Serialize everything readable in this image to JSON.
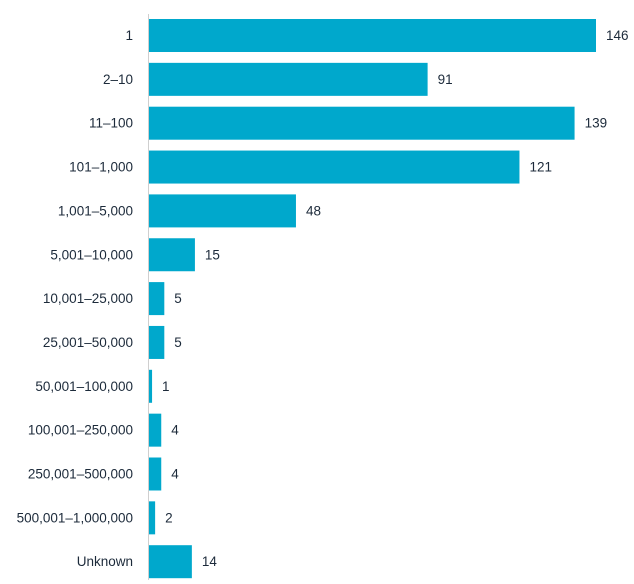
{
  "chart_data": {
    "type": "bar",
    "orientation": "horizontal",
    "categories": [
      "1",
      "2–10",
      "11–100",
      "101–1,000",
      "1,001–5,000",
      "5,001–10,000",
      "10,001–25,000",
      "25,001–50,000",
      "50,001–100,000",
      "100,001–250,000",
      "250,001–500,000",
      "500,001–1,000,000",
      "Unknown"
    ],
    "values": [
      146,
      91,
      139,
      121,
      48,
      15,
      5,
      5,
      1,
      4,
      4,
      2,
      14
    ],
    "value_labels": [
      "146",
      "91",
      "139",
      "121",
      "48",
      "15",
      "5",
      "5",
      "1",
      "4",
      "4",
      "2",
      "14"
    ],
    "title": "",
    "xlabel": "",
    "ylabel": "",
    "xlim": [
      0,
      146
    ],
    "grid": false,
    "legend": "none",
    "bar_color": "#00a8cc",
    "axis_color": "#cfcfcf",
    "text_color": "#1c2a3a"
  }
}
